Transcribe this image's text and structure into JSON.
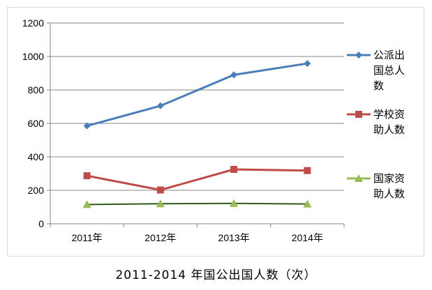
{
  "caption": "2011-2014 年国公出国人数（次）",
  "chart_data": {
    "type": "line",
    "categories": [
      "2011年",
      "2012年",
      "2013年",
      "2014年"
    ],
    "ylim": [
      0,
      1200
    ],
    "yticks": [
      0,
      200,
      400,
      600,
      800,
      1000,
      1200
    ],
    "grid": true,
    "legend_position": "right",
    "series": [
      {
        "name": "公派出国总人数",
        "legend_lines": [
          "公派出",
          "国总人",
          "数"
        ],
        "marker": "diamond",
        "color": "#4a7ebb",
        "values": [
          585,
          705,
          890,
          958
        ]
      },
      {
        "name": "学校资助人数",
        "legend_lines": [
          "学校资",
          "助人数"
        ],
        "marker": "square",
        "color": "#be4b48",
        "values": [
          287,
          202,
          325,
          318
        ]
      },
      {
        "name": "国家资助人数",
        "legend_lines": [
          "国家资",
          "助人数"
        ],
        "marker": "triangle",
        "color": "#98b954",
        "values": [
          115,
          120,
          122,
          118
        ]
      }
    ]
  }
}
